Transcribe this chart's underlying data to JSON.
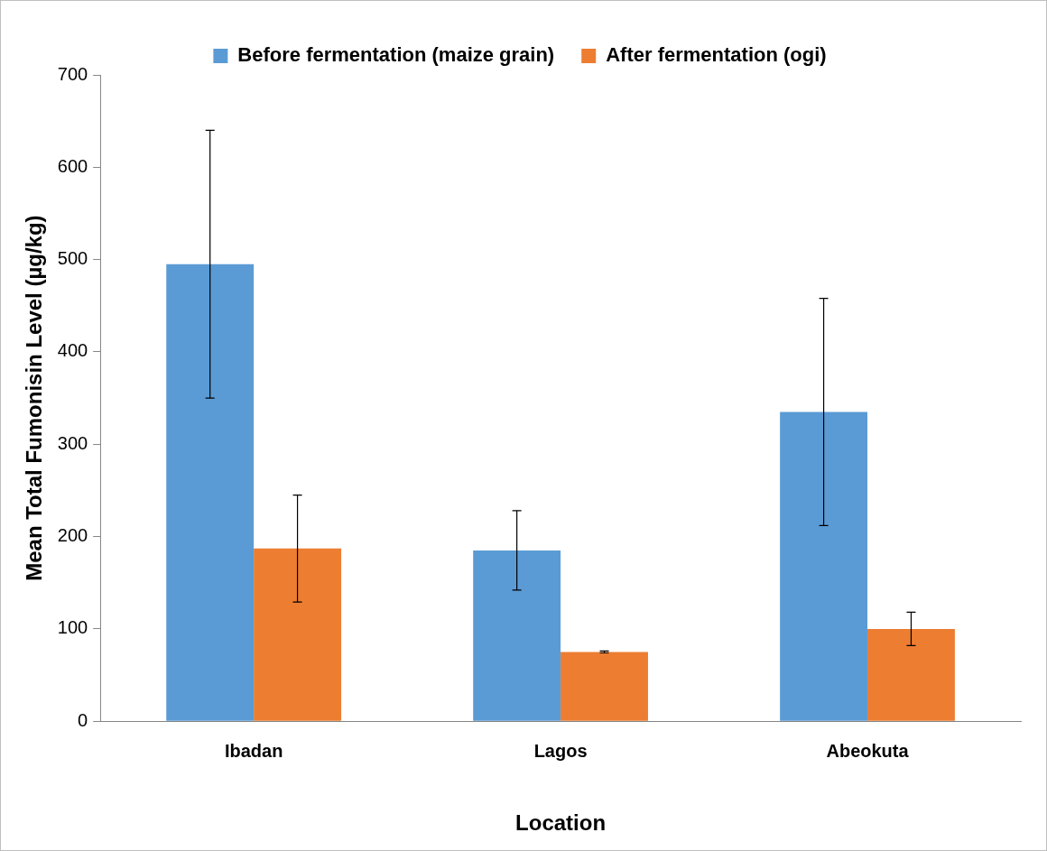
{
  "chart_data": {
    "type": "bar",
    "xlabel": "Location",
    "ylabel": "Mean Total Fumonisin Level (µg/kg)",
    "categories": [
      "Ibadan",
      "Lagos",
      "Abeokuta"
    ],
    "series": [
      {
        "name": "Before fermentation (maize grain)",
        "color": "#5b9bd5",
        "values": [
          495,
          185,
          335
        ],
        "errors": [
          145,
          43,
          123
        ]
      },
      {
        "name": "After fermentation (ogi)",
        "color": "#ed7d31",
        "values": [
          187,
          75,
          100
        ],
        "errors": [
          58,
          1,
          18
        ]
      }
    ],
    "ylim": [
      0,
      700
    ],
    "yticks": [
      0,
      100,
      200,
      300,
      400,
      500,
      600,
      700
    ],
    "grid": false,
    "legend": "top"
  }
}
